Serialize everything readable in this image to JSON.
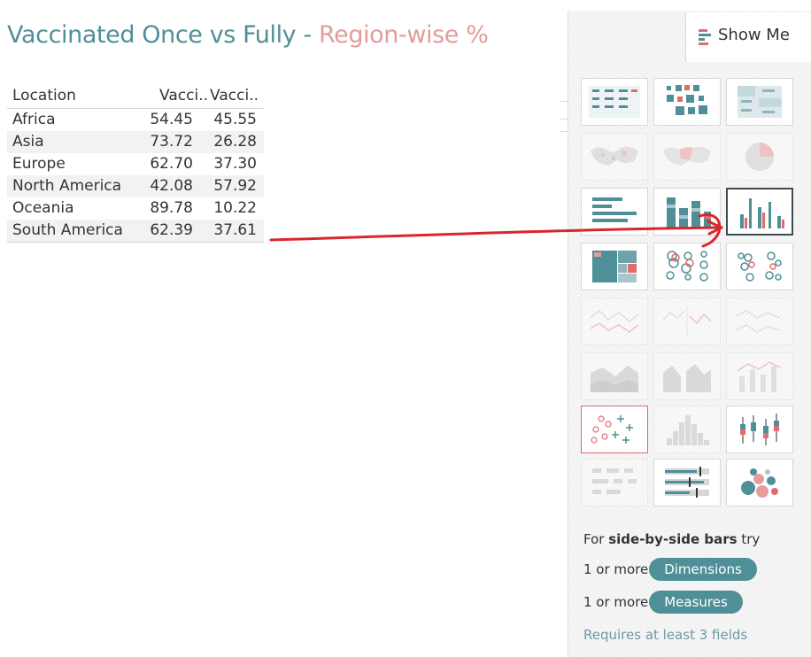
{
  "title": {
    "part1": "Vaccinated Once vs Fully",
    "separator": " - ",
    "part2": "Region-wise %"
  },
  "table": {
    "headers": [
      "Location",
      "Vacci..",
      "Vacci.."
    ],
    "rows": [
      {
        "location": "Africa",
        "v1": "54.45",
        "v2": "45.55"
      },
      {
        "location": "Asia",
        "v1": "73.72",
        "v2": "26.28"
      },
      {
        "location": "Europe",
        "v1": "62.70",
        "v2": "37.30"
      },
      {
        "location": "North America",
        "v1": "42.08",
        "v2": "57.92"
      },
      {
        "location": "Oceania",
        "v1": "89.78",
        "v2": "10.22"
      },
      {
        "location": "South America",
        "v1": "62.39",
        "v2": "37.61"
      }
    ]
  },
  "show_me": {
    "tab_label": "Show Me",
    "tab_icon": "show-me-icon",
    "chart_types": [
      {
        "name": "text-table",
        "state": "enabled"
      },
      {
        "name": "heat-map",
        "state": "enabled"
      },
      {
        "name": "highlight-table",
        "state": "enabled"
      },
      {
        "name": "symbol-map",
        "state": "disabled"
      },
      {
        "name": "filled-map",
        "state": "disabled"
      },
      {
        "name": "pie-chart",
        "state": "disabled"
      },
      {
        "name": "horizontal-bars",
        "state": "enabled"
      },
      {
        "name": "stacked-bars",
        "state": "enabled"
      },
      {
        "name": "side-by-side-bars",
        "state": "selected"
      },
      {
        "name": "treemap",
        "state": "enabled"
      },
      {
        "name": "circle-views",
        "state": "enabled"
      },
      {
        "name": "side-by-side-circles",
        "state": "enabled"
      },
      {
        "name": "continuous-lines",
        "state": "disabled"
      },
      {
        "name": "discrete-lines",
        "state": "disabled"
      },
      {
        "name": "dual-lines",
        "state": "disabled"
      },
      {
        "name": "area-continuous",
        "state": "disabled"
      },
      {
        "name": "area-discrete",
        "state": "disabled"
      },
      {
        "name": "dual-combination",
        "state": "disabled"
      },
      {
        "name": "scatter-plot",
        "state": "active"
      },
      {
        "name": "histogram",
        "state": "disabled"
      },
      {
        "name": "box-and-whisker",
        "state": "enabled"
      },
      {
        "name": "gantt-chart",
        "state": "disabled"
      },
      {
        "name": "bullet-graph",
        "state": "enabled"
      },
      {
        "name": "packed-bubbles",
        "state": "enabled"
      }
    ],
    "hint_prefix": "For ",
    "hint_chart": "side-by-side bars",
    "hint_suffix": " try",
    "req1_prefix": "1 or more",
    "req1_pill": "Dimensions",
    "req2_prefix": "1 or more",
    "req2_pill": "Measures",
    "requires_note": "Requires at least 3 fields"
  },
  "colors": {
    "teal": "#4f8f97",
    "pink": "#e29d98",
    "red_arrow": "#d9262c",
    "chart_red": "#e36b6b"
  }
}
